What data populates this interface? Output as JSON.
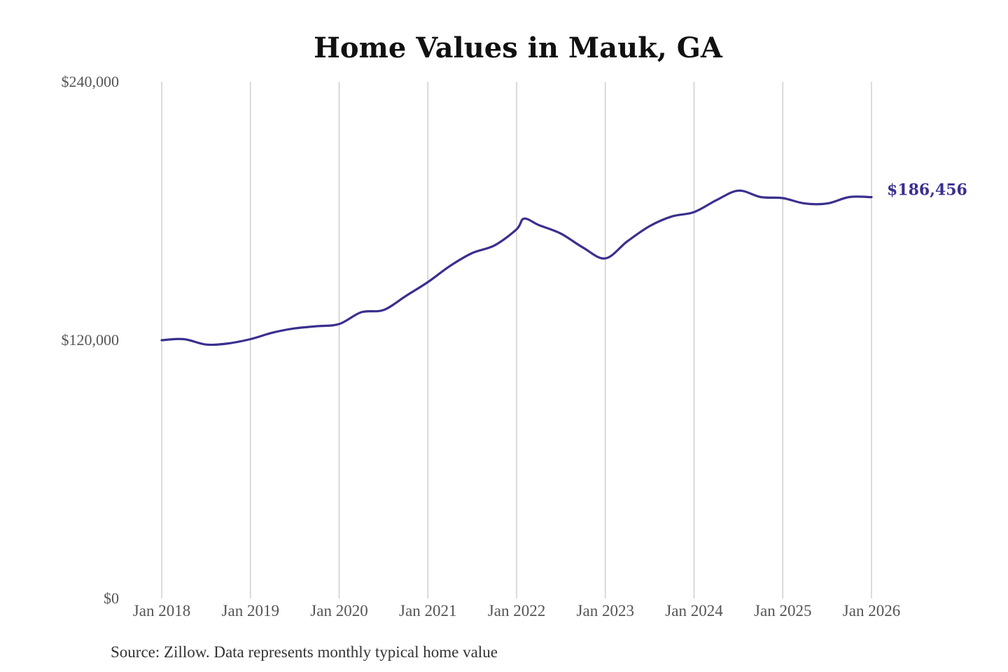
{
  "chart_data": {
    "type": "line",
    "title": "Home Values in Mauk, GA",
    "source": "Source: Zillow. Data represents monthly typical home value",
    "y_ticks": [
      {
        "value": 240000,
        "label": "$240,000"
      },
      {
        "value": 120000,
        "label": "$120,000"
      },
      {
        "value": 0,
        "label": "$0"
      }
    ],
    "x_ticks": [
      {
        "value": "2018-01",
        "label": "Jan 2018"
      },
      {
        "value": "2019-01",
        "label": "Jan 2019"
      },
      {
        "value": "2020-01",
        "label": "Jan 2020"
      },
      {
        "value": "2021-01",
        "label": "Jan 2021"
      },
      {
        "value": "2022-01",
        "label": "Jan 2022"
      },
      {
        "value": "2023-01",
        "label": "Jan 2023"
      },
      {
        "value": "2024-01",
        "label": "Jan 2024"
      },
      {
        "value": "2025-01",
        "label": "Jan 2025"
      },
      {
        "value": "2026-01",
        "label": "Jan 2026"
      }
    ],
    "ylim": [
      0,
      240000
    ],
    "xlim": [
      "2018-01",
      "2026-01"
    ],
    "grid": "vertical",
    "line_color": "#3a2f8f",
    "end_label": "$186,456",
    "series": [
      {
        "x": [
          "2018-01",
          "2018-04",
          "2018-07",
          "2018-10",
          "2019-01",
          "2019-04",
          "2019-07",
          "2019-10",
          "2020-01",
          "2020-04",
          "2020-07",
          "2020-10",
          "2021-01",
          "2021-04",
          "2021-07",
          "2021-10",
          "2022-01",
          "2022-02",
          "2022-04",
          "2022-07",
          "2022-10",
          "2023-01",
          "2023-04",
          "2023-07",
          "2023-10",
          "2024-01",
          "2024-04",
          "2024-07",
          "2024-10",
          "2025-01",
          "2025-04",
          "2025-07",
          "2025-10",
          "2026-01"
        ],
        "y": [
          120000,
          120500,
          118000,
          118500,
          120500,
          123500,
          125500,
          126500,
          127500,
          133000,
          134000,
          140500,
          147000,
          154500,
          160500,
          164000,
          171500,
          176500,
          173500,
          169500,
          163000,
          158000,
          166000,
          173000,
          177500,
          179500,
          185000,
          189500,
          186500,
          186000,
          183500,
          183500,
          186500,
          186456
        ]
      }
    ]
  }
}
